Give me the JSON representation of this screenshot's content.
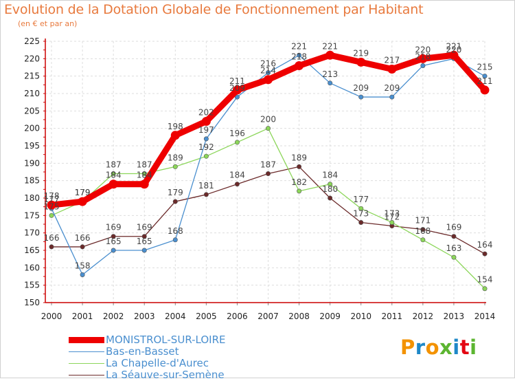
{
  "header": {
    "title": "Evolution de la Dotation Globale de Fonctionnement par Habitant",
    "subtitle": "(en € et par an)"
  },
  "logo": {
    "text": "Proxiti",
    "colors": [
      "#f39200",
      "#1e88c8",
      "#f39200",
      "#5cb531",
      "#1e88c8",
      "#e30613",
      "#5cb531"
    ]
  },
  "chart_data": {
    "type": "line",
    "x": [
      "2000",
      "2001",
      "2002",
      "2003",
      "2004",
      "2005",
      "2006",
      "2007",
      "2008",
      "2009",
      "2010",
      "2011",
      "2012",
      "2013",
      "2014"
    ],
    "ylim": [
      150,
      225
    ],
    "yticks": [
      150,
      155,
      160,
      165,
      170,
      175,
      180,
      185,
      190,
      195,
      200,
      205,
      210,
      215,
      220,
      225
    ],
    "grid": true,
    "legend_position": "bottom-left",
    "series": [
      {
        "name": "MONISTROL-SUR-LOIRE",
        "color": "#ee0000",
        "values": [
          178,
          179,
          184,
          184,
          198,
          202,
          211,
          214,
          218,
          221,
          219,
          217,
          220,
          221,
          211
        ],
        "labels": [
          "178",
          "179",
          "184",
          "184",
          "198",
          "202",
          "211",
          "214",
          "218",
          "221",
          "219",
          "217",
          "220",
          "221",
          "211"
        ]
      },
      {
        "name": "Bas-en-Basset",
        "color": "#4a8fcf",
        "values": [
          177,
          158,
          165,
          165,
          168,
          197,
          209,
          216,
          221,
          213,
          209,
          209,
          218,
          220,
          215
        ],
        "labels": [
          "177",
          "158",
          "165",
          "165",
          "168",
          "197",
          "209",
          "216",
          "221",
          "213",
          "209",
          "209",
          "218",
          "220",
          "215"
        ]
      },
      {
        "name": "La Chapelle-d'Aurec",
        "color": "#8cd65a",
        "values": [
          175,
          179,
          187,
          187,
          189,
          192,
          196,
          200,
          182,
          184,
          177,
          173,
          168,
          163,
          154
        ],
        "labels": [
          "175",
          "179",
          "187",
          "187",
          "189",
          "192",
          "196",
          "200",
          "182",
          "184",
          "177",
          "173",
          "168",
          "163",
          "154"
        ]
      },
      {
        "name": "La Séauve-sur-Semène",
        "color": "#6b2a2a",
        "values": [
          166,
          166,
          169,
          169,
          179,
          181,
          184,
          187,
          189,
          180,
          173,
          172,
          171,
          169,
          164
        ],
        "labels": [
          "166",
          "166",
          "169",
          "169",
          "179",
          "181",
          "184",
          "187",
          "189",
          "180",
          "173",
          "172",
          "171",
          "169",
          "164"
        ]
      }
    ]
  }
}
